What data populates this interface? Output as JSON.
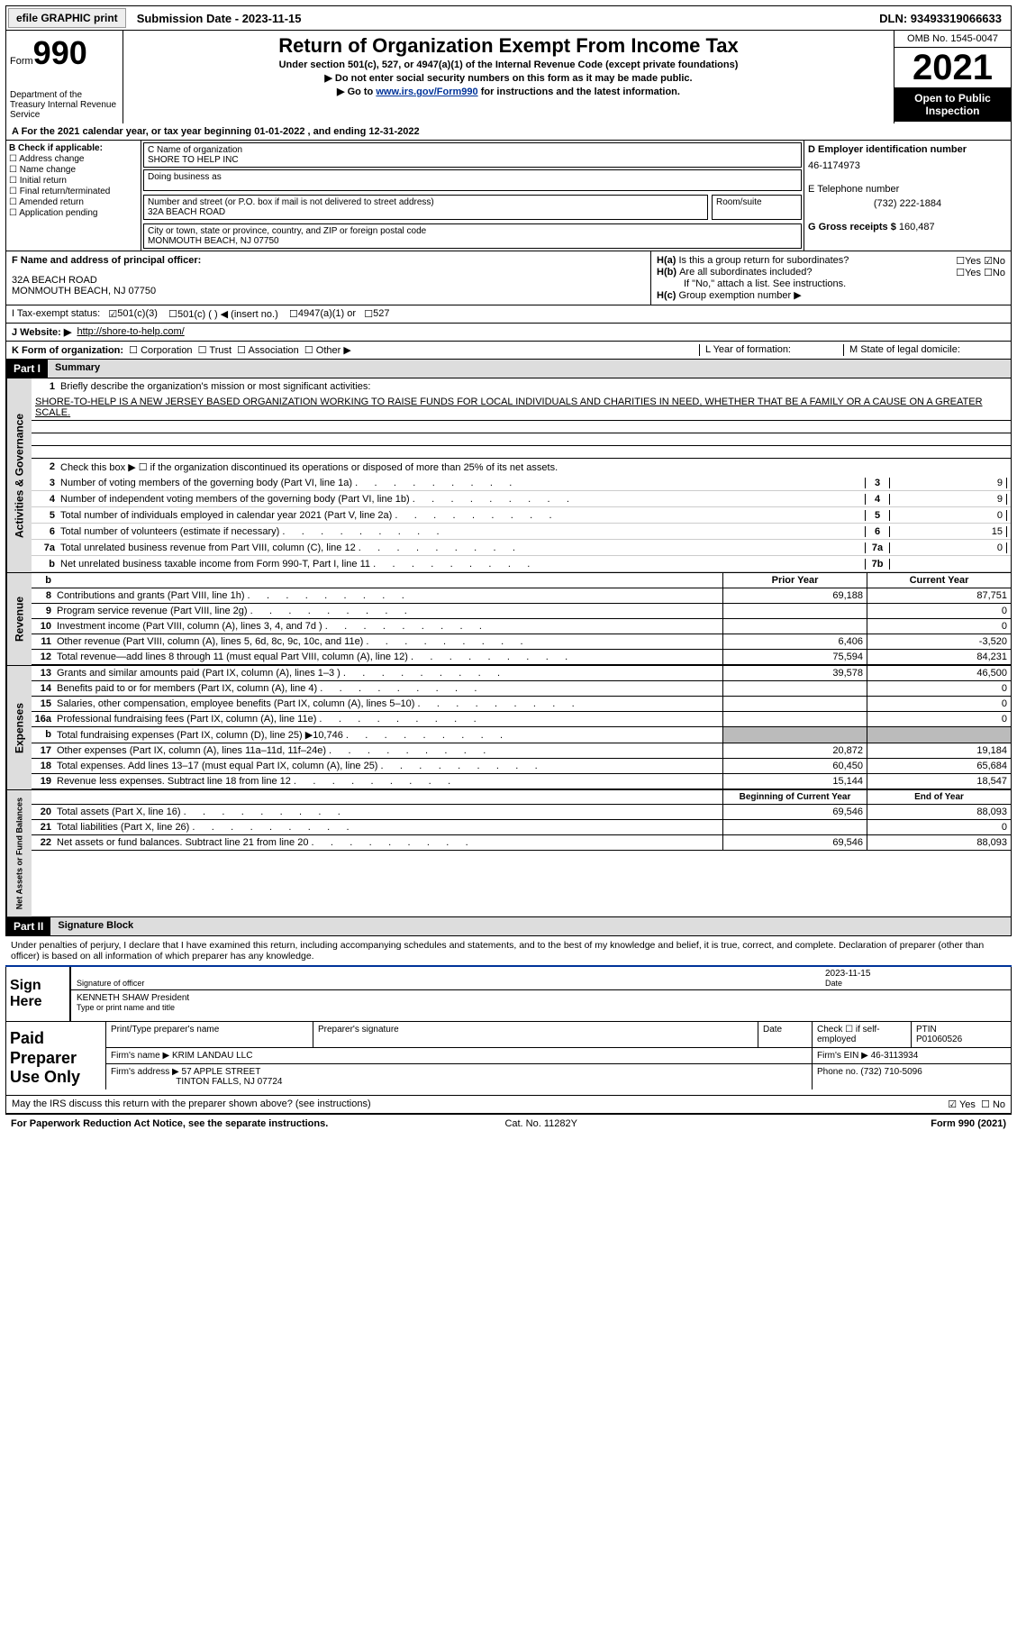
{
  "topbar": {
    "efile": "efile GRAPHIC print",
    "submission": "Submission Date - 2023-11-15",
    "dln": "DLN: 93493319066633"
  },
  "header": {
    "form_label": "Form",
    "form_number": "990",
    "dept": "Department of the Treasury Internal Revenue Service",
    "title": "Return of Organization Exempt From Income Tax",
    "sub1": "Under section 501(c), 527, or 4947(a)(1) of the Internal Revenue Code (except private foundations)",
    "sub2": "▶ Do not enter social security numbers on this form as it may be made public.",
    "sub3_pre": "▶ Go to ",
    "sub3_link": "www.irs.gov/Form990",
    "sub3_post": " for instructions and the latest information.",
    "omb": "OMB No. 1545-0047",
    "year": "2021",
    "open": "Open to Public Inspection"
  },
  "A": "A For the 2021 calendar year, or tax year beginning 01-01-2022    , and ending 12-31-2022",
  "B": {
    "label": "B Check if applicable:",
    "opts": [
      "Address change",
      "Name change",
      "Initial return",
      "Final return/terminated",
      "Amended return",
      "Application pending"
    ]
  },
  "C": {
    "name_label": "C Name of organization",
    "name": "SHORE TO HELP INC",
    "dba_label": "Doing business as",
    "addr_label": "Number and street (or P.O. box if mail is not delivered to street address)",
    "room_label": "Room/suite",
    "addr": "32A BEACH ROAD",
    "city_label": "City or town, state or province, country, and ZIP or foreign postal code",
    "city": "MONMOUTH BEACH, NJ  07750"
  },
  "D": {
    "label": "D Employer identification number",
    "value": "46-1174973"
  },
  "E": {
    "label": "E Telephone number",
    "value": "(732) 222-1884"
  },
  "G": {
    "label": "G Gross receipts $",
    "value": "160,487"
  },
  "F": {
    "label": "F Name and address of principal officer:",
    "addr1": "32A BEACH ROAD",
    "addr2": "MONMOUTH BEACH, NJ  07750"
  },
  "H": {
    "a": "Is this a group return for subordinates?",
    "b": "Are all subordinates included?",
    "b_note": "If \"No,\" attach a list. See instructions.",
    "c": "Group exemption number ▶"
  },
  "I": {
    "label": "I   Tax-exempt status:",
    "opts": [
      "501(c)(3)",
      "501(c) (  ) ◀ (insert no.)",
      "4947(a)(1) or",
      "527"
    ]
  },
  "J": {
    "label": "J  Website: ▶",
    "value": "http://shore-to-help.com/"
  },
  "K": {
    "label": "K Form of organization:",
    "opts": [
      "Corporation",
      "Trust",
      "Association",
      "Other ▶"
    ]
  },
  "L": "L Year of formation:",
  "M": "M State of legal domicile:",
  "part1": {
    "header": "Part I",
    "title": "Summary",
    "l1": "Briefly describe the organization's mission or most significant activities:",
    "mission": "SHORE-TO-HELP IS A NEW JERSEY BASED ORGANIZATION WORKING TO RAISE FUNDS FOR LOCAL INDIVIDUALS AND CHARITIES IN NEED, WHETHER THAT BE A FAMILY OR A CAUSE ON A GREATER SCALE.",
    "l2": "Check this box ▶ ☐ if the organization discontinued its operations or disposed of more than 25% of its net assets.",
    "lines": [
      {
        "n": "3",
        "t": "Number of voting members of the governing body (Part VI, line 1a)",
        "box": "3",
        "v": "9"
      },
      {
        "n": "4",
        "t": "Number of independent voting members of the governing body (Part VI, line 1b)",
        "box": "4",
        "v": "9"
      },
      {
        "n": "5",
        "t": "Total number of individuals employed in calendar year 2021 (Part V, line 2a)",
        "box": "5",
        "v": "0"
      },
      {
        "n": "6",
        "t": "Total number of volunteers (estimate if necessary)",
        "box": "6",
        "v": "15"
      },
      {
        "n": "7a",
        "t": "Total unrelated business revenue from Part VIII, column (C), line 12",
        "box": "7a",
        "v": "0"
      },
      {
        "n": "b",
        "t": "Net unrelated business taxable income from Form 990-T, Part I, line 11",
        "box": "7b",
        "v": ""
      }
    ],
    "col_prior": "Prior Year",
    "col_current": "Current Year",
    "revenue": [
      {
        "n": "8",
        "t": "Contributions and grants (Part VIII, line 1h)",
        "p": "69,188",
        "c": "87,751"
      },
      {
        "n": "9",
        "t": "Program service revenue (Part VIII, line 2g)",
        "p": "",
        "c": "0"
      },
      {
        "n": "10",
        "t": "Investment income (Part VIII, column (A), lines 3, 4, and 7d )",
        "p": "",
        "c": "0"
      },
      {
        "n": "11",
        "t": "Other revenue (Part VIII, column (A), lines 5, 6d, 8c, 9c, 10c, and 11e)",
        "p": "6,406",
        "c": "-3,520"
      },
      {
        "n": "12",
        "t": "Total revenue—add lines 8 through 11 (must equal Part VIII, column (A), line 12)",
        "p": "75,594",
        "c": "84,231"
      }
    ],
    "expenses": [
      {
        "n": "13",
        "t": "Grants and similar amounts paid (Part IX, column (A), lines 1–3 )",
        "p": "39,578",
        "c": "46,500"
      },
      {
        "n": "14",
        "t": "Benefits paid to or for members (Part IX, column (A), line 4)",
        "p": "",
        "c": "0"
      },
      {
        "n": "15",
        "t": "Salaries, other compensation, employee benefits (Part IX, column (A), lines 5–10)",
        "p": "",
        "c": "0"
      },
      {
        "n": "16a",
        "t": "Professional fundraising fees (Part IX, column (A), line 11e)",
        "p": "",
        "c": "0"
      },
      {
        "n": "b",
        "t": "Total fundraising expenses (Part IX, column (D), line 25) ▶10,746",
        "p": "shaded",
        "c": "shaded"
      },
      {
        "n": "17",
        "t": "Other expenses (Part IX, column (A), lines 11a–11d, 11f–24e)",
        "p": "20,872",
        "c": "19,184"
      },
      {
        "n": "18",
        "t": "Total expenses. Add lines 13–17 (must equal Part IX, column (A), line 25)",
        "p": "60,450",
        "c": "65,684"
      },
      {
        "n": "19",
        "t": "Revenue less expenses. Subtract line 18 from line 12",
        "p": "15,144",
        "c": "18,547"
      }
    ],
    "col_begin": "Beginning of Current Year",
    "col_end": "End of Year",
    "netassets": [
      {
        "n": "20",
        "t": "Total assets (Part X, line 16)",
        "p": "69,546",
        "c": "88,093"
      },
      {
        "n": "21",
        "t": "Total liabilities (Part X, line 26)",
        "p": "",
        "c": "0"
      },
      {
        "n": "22",
        "t": "Net assets or fund balances. Subtract line 21 from line 20",
        "p": "69,546",
        "c": "88,093"
      }
    ],
    "side_ag": "Activities & Governance",
    "side_rev": "Revenue",
    "side_exp": "Expenses",
    "side_na": "Net Assets or Fund Balances"
  },
  "part2": {
    "header": "Part II",
    "title": "Signature Block",
    "declaration": "Under penalties of perjury, I declare that I have examined this return, including accompanying schedules and statements, and to the best of my knowledge and belief, it is true, correct, and complete. Declaration of preparer (other than officer) is based on all information of which preparer has any knowledge.",
    "sign_here": "Sign Here",
    "sig_officer": "Signature of officer",
    "sig_date": "2023-11-15",
    "date_label": "Date",
    "officer_name": "KENNETH SHAW  President",
    "name_title_label": "Type or print name and title",
    "paid": "Paid Preparer Use Only",
    "prep_name_label": "Print/Type preparer's name",
    "prep_sig_label": "Preparer's signature",
    "prep_date_label": "Date",
    "check_self": "Check ☐ if self-employed",
    "ptin_label": "PTIN",
    "ptin": "P01060526",
    "firm_name_label": "Firm's name    ▶",
    "firm_name": "KRIM LANDAU LLC",
    "firm_ein_label": "Firm's EIN ▶",
    "firm_ein": "46-3113934",
    "firm_addr_label": "Firm's address ▶",
    "firm_addr1": "57 APPLE STREET",
    "firm_addr2": "TINTON FALLS, NJ  07724",
    "phone_label": "Phone no.",
    "phone": "(732) 710-5096",
    "may_irs": "May the IRS discuss this return with the preparer shown above? (see instructions)",
    "yes": "Yes",
    "no": "No"
  },
  "footer": {
    "left": "For Paperwork Reduction Act Notice, see the separate instructions.",
    "center": "Cat. No. 11282Y",
    "right": "Form 990 (2021)"
  }
}
